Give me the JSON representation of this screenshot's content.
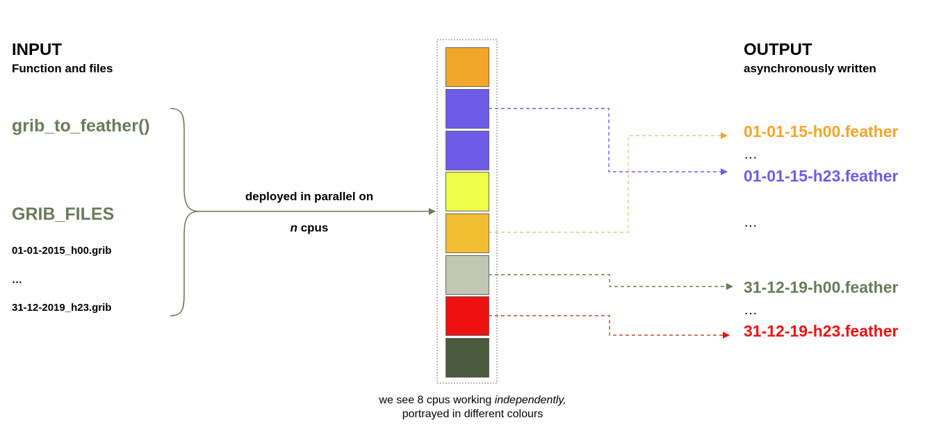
{
  "input": {
    "heading": "INPUT",
    "subheading": "Function and files",
    "function_name": "grib_to_feather()",
    "files_label": "GRIB_FILES",
    "files": [
      "01-01-2015_h00.grib",
      "…",
      "31-12-2019_h23.grib"
    ]
  },
  "middle": {
    "line1": "deployed in parallel on",
    "line2_italic": "n",
    "line2_rest": " cpus"
  },
  "cpus": {
    "colors": [
      "#f2a62a",
      "#6e5ce6",
      "#6e5ce6",
      "#eefe4a",
      "#f1bd32",
      "#c0c7b4",
      "#ee1111",
      "#4a5a3c"
    ]
  },
  "caption": {
    "line1_plain": "we see 8 cpus working ",
    "line1_italic": "independently,",
    "line2": "portrayed in different colours"
  },
  "output": {
    "heading": "OUTPUT",
    "subheading": "asynchronously written",
    "files": [
      {
        "text": "01-01-15-h00.feather",
        "color": "#f2a62a"
      },
      {
        "text": "…",
        "color": "#000000"
      },
      {
        "text": "01-01-15-h23.feather",
        "color": "#6e5ce6"
      },
      {
        "text": "…",
        "color": "#000000"
      },
      {
        "text": "31-12-19-h00.feather",
        "color": "#6b7a5a"
      },
      {
        "text": "…",
        "color": "#000000"
      },
      {
        "text": "31-12-19-h23.feather",
        "color": "#ee1111"
      }
    ]
  },
  "colors": {
    "function_green": "#6b7a5a",
    "brace": "#6b7a5a"
  }
}
